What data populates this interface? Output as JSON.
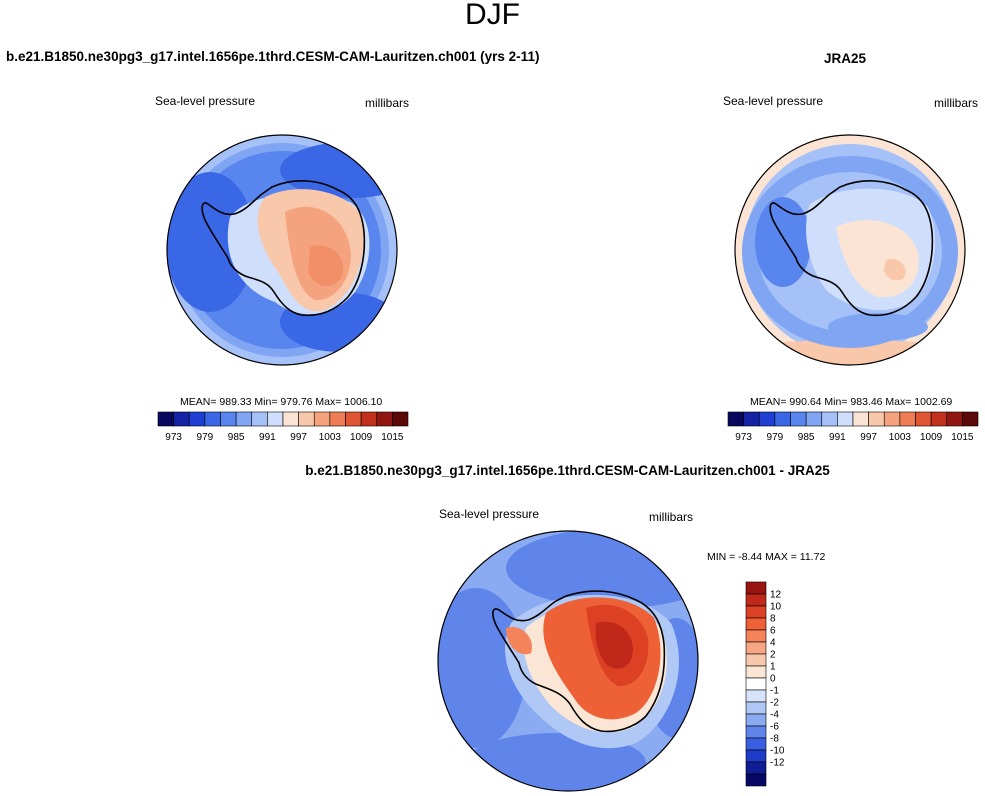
{
  "page_title": "DJF",
  "chart_data": [
    {
      "type": "heatmap",
      "projection": "polar stereographic (south)",
      "title": "b.e21.B1850.ne30pg3_g17.intel.1656pe.1thrd.CESM-CAM-Lauritzen.ch001 (yrs 2-11)",
      "variable_label": "Sea-level pressure",
      "units_label": "millibars",
      "stats_text": "MEAN= 989.33  Min= 979.76  Max= 1006.10",
      "mean": 989.33,
      "min": 979.76,
      "max": 1006.1,
      "colorbar": {
        "levels": [
          973,
          976,
          979,
          982,
          985,
          988,
          991,
          994,
          997,
          1000,
          1003,
          1006,
          1009,
          1012,
          1015
        ],
        "tick_labels": [
          "973",
          "979",
          "985",
          "991",
          "997",
          "1003",
          "1009",
          "1015"
        ],
        "colors": [
          "#08085e",
          "#1323a3",
          "#1e3fd1",
          "#3a67e6",
          "#5886ee",
          "#7fa5f3",
          "#a6c1f7",
          "#cfdffb",
          "#fbe4d4",
          "#f9c7a9",
          "#f5a37e",
          "#ee7d55",
          "#e05632",
          "#c1301a",
          "#911611",
          "#5c0808"
        ]
      }
    },
    {
      "type": "heatmap",
      "projection": "polar stereographic (south)",
      "title": "JRA25",
      "variable_label": "Sea-level pressure",
      "units_label": "millibars",
      "stats_text": "MEAN= 990.64  Min= 983.46  Max= 1002.69",
      "mean": 990.64,
      "min": 983.46,
      "max": 1002.69,
      "colorbar": {
        "levels": [
          973,
          976,
          979,
          982,
          985,
          988,
          991,
          994,
          997,
          1000,
          1003,
          1006,
          1009,
          1012,
          1015
        ],
        "tick_labels": [
          "973",
          "979",
          "985",
          "991",
          "997",
          "1003",
          "1009",
          "1015"
        ],
        "colors": [
          "#08085e",
          "#1323a3",
          "#1e3fd1",
          "#3a67e6",
          "#5886ee",
          "#7fa5f3",
          "#a6c1f7",
          "#cfdffb",
          "#fbe4d4",
          "#f9c7a9",
          "#f5a37e",
          "#ee7d55",
          "#e05632",
          "#c1301a",
          "#911611",
          "#5c0808"
        ]
      }
    },
    {
      "type": "heatmap",
      "projection": "polar stereographic (south)",
      "title": "b.e21.B1850.ne30pg3_g17.intel.1656pe.1thrd.CESM-CAM-Lauritzen.ch001 - JRA25",
      "variable_label": "Sea-level pressure",
      "units_label": "millibars",
      "stats_text": "MIN =  -8.44 MAX =  11.72",
      "min": -8.44,
      "max": 11.72,
      "colorbar": {
        "orientation": "vertical",
        "tick_labels": [
          "12",
          "10",
          "8",
          "6",
          "4",
          "2",
          "1",
          "0",
          "-1",
          "-2",
          "-4",
          "-6",
          "-8",
          "-10",
          "-12"
        ],
        "colors": [
          "#9a1410",
          "#c0281a",
          "#dd4124",
          "#ee6035",
          "#f4835a",
          "#f6a585",
          "#f8c8ad",
          "#fbe6d6",
          "#ffffff",
          "#d6e4fa",
          "#b0c8f6",
          "#8aaaf1",
          "#5f85eb",
          "#3a5fe2",
          "#1f3cc9",
          "#0f1e95",
          "#070766"
        ]
      }
    }
  ]
}
